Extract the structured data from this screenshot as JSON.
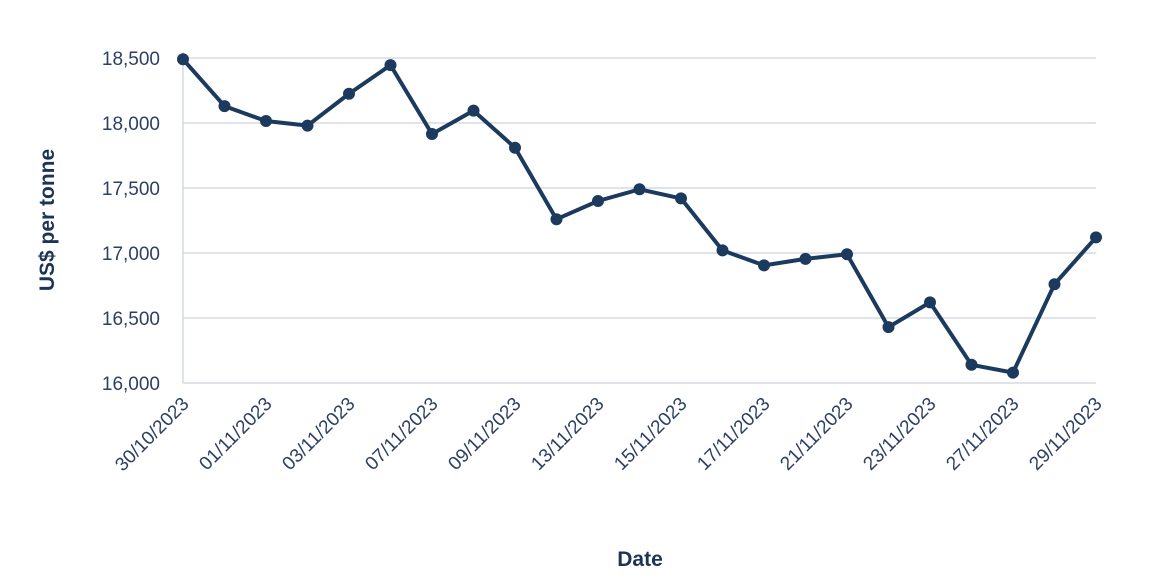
{
  "chart_data": {
    "type": "line",
    "title": "",
    "xlabel": "Date",
    "ylabel": "US$ per tonne",
    "ylim": [
      16000,
      18500
    ],
    "yticks": [
      16000,
      16500,
      17000,
      17500,
      18000,
      18500
    ],
    "ytick_labels": [
      "16,000",
      "16,500",
      "17,000",
      "17,500",
      "18,000",
      "18,500"
    ],
    "grid": true,
    "legend": "none",
    "x": [
      "30/10/2023",
      "31/10/2023",
      "01/11/2023",
      "02/11/2023",
      "03/11/2023",
      "06/11/2023",
      "07/11/2023",
      "08/11/2023",
      "09/11/2023",
      "10/11/2023",
      "13/11/2023",
      "14/11/2023",
      "15/11/2023",
      "16/11/2023",
      "17/11/2023",
      "20/11/2023",
      "21/11/2023",
      "22/11/2023",
      "23/11/2023",
      "24/11/2023",
      "27/11/2023",
      "28/11/2023",
      "29/11/2023"
    ],
    "xtick_labels": [
      "30/10/2023",
      "01/11/2023",
      "03/11/2023",
      "07/11/2023",
      "09/11/2023",
      "13/11/2023",
      "15/11/2023",
      "17/11/2023",
      "21/11/2023",
      "23/11/2023",
      "27/11/2023",
      "29/11/2023"
    ],
    "series": [
      {
        "color": "#1b3a5e",
        "values": [
          18490,
          18130,
          18015,
          17980,
          18225,
          18445,
          17915,
          18095,
          17810,
          17260,
          17400,
          17490,
          17420,
          17020,
          16905,
          16955,
          16990,
          16430,
          16620,
          16140,
          16080,
          16760,
          17120
        ]
      }
    ]
  }
}
